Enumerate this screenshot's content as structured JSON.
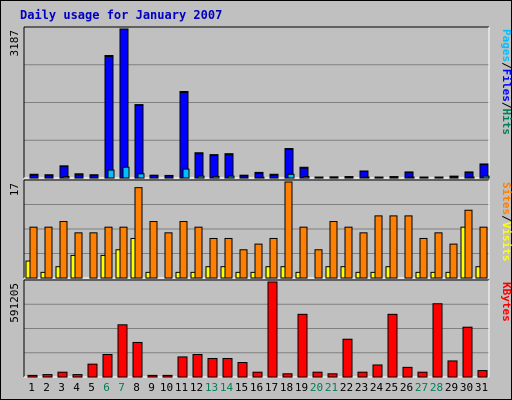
{
  "chart_data": {
    "type": "bar",
    "title": "Daily usage for January 2007",
    "x": [
      1,
      2,
      3,
      4,
      5,
      6,
      7,
      8,
      9,
      10,
      11,
      12,
      13,
      14,
      15,
      16,
      17,
      18,
      19,
      20,
      21,
      22,
      23,
      24,
      25,
      26,
      27,
      28,
      29,
      30,
      31
    ],
    "weekend_days": [
      6,
      7,
      13,
      14,
      20,
      21,
      27,
      28
    ],
    "colors": {
      "hits": "#00805c",
      "files": "#0000ff",
      "pages": "#00c0ff",
      "visits": "#ffff00",
      "sites": "#ff8000",
      "kbytes": "#ff0000",
      "weekend_tick": "#00805c",
      "weekday_tick": "#000000",
      "title": "#0000c0"
    },
    "panels": [
      {
        "id": "hits-files-pages",
        "ymax_label": "3187",
        "ymax": 3187,
        "legend": [
          "Pages",
          "/",
          "Files",
          "/",
          "Hits"
        ],
        "series": [
          {
            "name": "Hits",
            "color": "#00805c",
            "values": [
              80,
              70,
              260,
              90,
              70,
              2620,
              3187,
              1570,
              60,
              55,
              1850,
              540,
              500,
              520,
              60,
              120,
              80,
              630,
              230,
              20,
              25,
              30,
              150,
              20,
              30,
              130,
              20,
              20,
              40,
              130,
              300
            ]
          },
          {
            "name": "Files",
            "color": "#0000ff",
            "values": [
              60,
              50,
              250,
              70,
              50,
              2600,
              3187,
              1550,
              50,
              45,
              1830,
              520,
              480,
              500,
              45,
              100,
              60,
              610,
              210,
              15,
              20,
              25,
              140,
              15,
              25,
              120,
              15,
              15,
              30,
              120,
              290
            ]
          },
          {
            "name": "Pages",
            "color": "#00c0ff",
            "values": [
              10,
              8,
              30,
              10,
              8,
              170,
              230,
              90,
              8,
              6,
              190,
              40,
              35,
              40,
              8,
              15,
              10,
              80,
              30,
              5,
              5,
              5,
              20,
              5,
              5,
              20,
              5,
              5,
              5,
              20,
              40
            ]
          }
        ]
      },
      {
        "id": "visits-sites",
        "ymax_label": "17",
        "ymax": 17,
        "legend": [
          "Sites",
          "/",
          "Visits"
        ],
        "series": [
          {
            "name": "Visits",
            "color": "#ffff00",
            "values": [
              3,
              1,
              2,
              4,
              0,
              4,
              5,
              7,
              1,
              0,
              1,
              1,
              2,
              2,
              1,
              1,
              2,
              2,
              1,
              0,
              2,
              2,
              1,
              1,
              2,
              0,
              1,
              1,
              1,
              9,
              2
            ]
          },
          {
            "name": "Sites",
            "color": "#ff8000",
            "values": [
              9,
              9,
              10,
              8,
              8,
              9,
              9,
              16,
              10,
              8,
              10,
              9,
              7,
              7,
              5,
              6,
              7,
              17,
              9,
              5,
              10,
              9,
              8,
              11,
              11,
              11,
              7,
              8,
              6,
              12,
              9
            ]
          }
        ]
      },
      {
        "id": "kbytes",
        "ymax_label": "591205",
        "ymax": 591205,
        "legend": [
          "KBytes"
        ],
        "series": [
          {
            "name": "KBytes",
            "color": "#ff0000",
            "values": [
              10000,
              15000,
              30000,
              15000,
              80000,
              140000,
              325000,
              215000,
              10000,
              10000,
              125000,
              140000,
              115000,
              115000,
              90000,
              30000,
              591205,
              20000,
              390000,
              30000,
              20000,
              235000,
              30000,
              75000,
              390000,
              60000,
              30000,
              456000,
              100000,
              310000,
              40000
            ]
          }
        ]
      }
    ]
  }
}
